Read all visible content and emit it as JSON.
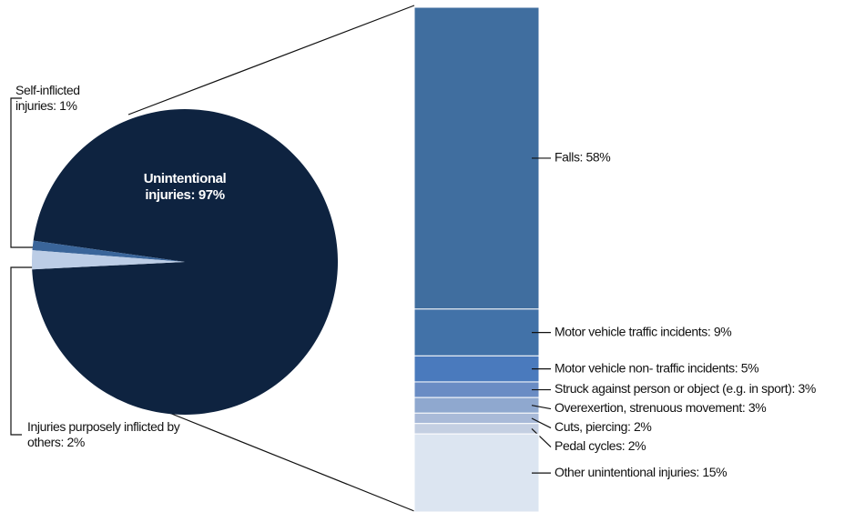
{
  "chart_data": [
    {
      "type": "pie",
      "labels": [
        "Unintentional injuries: 97%",
        "Self-inflicted injuries: 1%",
        "Injuries purposely inflicted by others: 2%"
      ],
      "values": [
        97,
        1,
        2
      ],
      "colors": [
        "#0e2340",
        "#3a659a",
        "#bccde6"
      ]
    },
    {
      "type": "bar",
      "stacked": true,
      "labels": [
        "Falls: 58%",
        "Motor vehicle traffic incidents: 9%",
        "Motor vehicle non- traffic incidents: 5%",
        "Struck against person or object  (e.g. in sport): 3%",
        "Overexertion, strenuous movement: 3%",
        "Cuts, piercing: 2%",
        "Pedal cycles: 2%",
        "Other unintentional injuries: 15%"
      ],
      "values": [
        58,
        9,
        5,
        3,
        3,
        2,
        2,
        15
      ],
      "colors": [
        "#406e9f",
        "#4272a8",
        "#4a7abd",
        "#6a8cc4",
        "#8fa8cf",
        "#a9bad8",
        "#c4cfe2",
        "#dce5f1"
      ]
    }
  ]
}
